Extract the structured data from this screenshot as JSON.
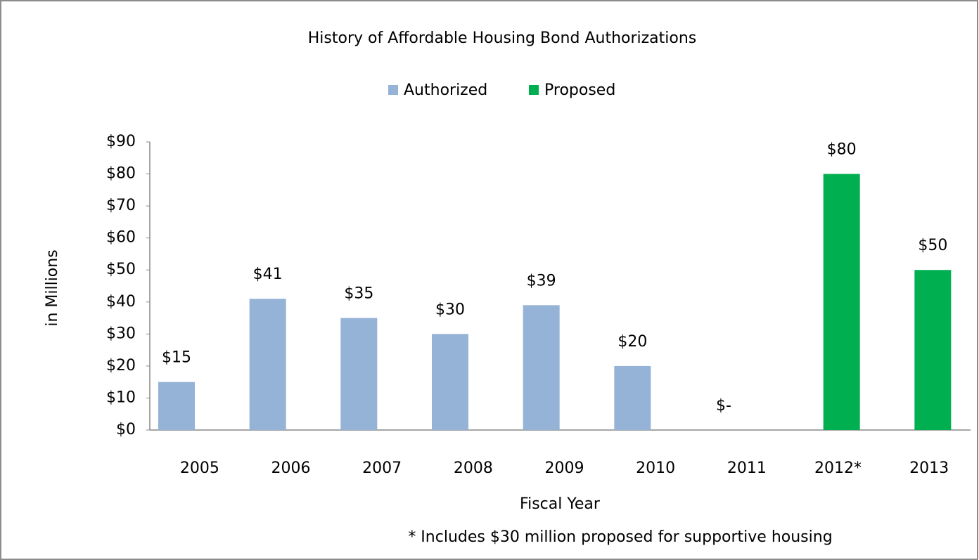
{
  "chart_data": {
    "type": "bar",
    "title": "History of Affordable Housing Bond Authorizations",
    "x_label": "Fiscal Year",
    "y_label": "in Millions",
    "footnote": "* Includes $30 million proposed for supportive housing",
    "categories": [
      "2005",
      "2006",
      "2007",
      "2008",
      "2009",
      "2010",
      "2011",
      "2012*",
      "2013"
    ],
    "series": [
      {
        "name": "Authorized",
        "color": "#95b3d7",
        "values": [
          15,
          41,
          35,
          30,
          39,
          20,
          0,
          null,
          null
        ],
        "value_labels": [
          "$15",
          "$41",
          "$35",
          "$30",
          "$39",
          "$20",
          "$-",
          null,
          null
        ]
      },
      {
        "name": "Proposed",
        "color": "#00b050",
        "values": [
          null,
          null,
          null,
          null,
          null,
          null,
          null,
          80,
          50
        ],
        "value_labels": [
          null,
          null,
          null,
          null,
          null,
          null,
          null,
          "$80",
          "$50"
        ]
      }
    ],
    "ylim": [
      0,
      90
    ],
    "yticks": [
      {
        "value": 0,
        "label": "$0"
      },
      {
        "value": 10,
        "label": "$10"
      },
      {
        "value": 20,
        "label": "$20"
      },
      {
        "value": 30,
        "label": "$30"
      },
      {
        "value": 40,
        "label": "$40"
      },
      {
        "value": 50,
        "label": "$50"
      },
      {
        "value": 60,
        "label": "$60"
      },
      {
        "value": 70,
        "label": "$70"
      },
      {
        "value": 80,
        "label": "$80"
      },
      {
        "value": 90,
        "label": "$90"
      }
    ],
    "legend": "top",
    "grid": false
  }
}
